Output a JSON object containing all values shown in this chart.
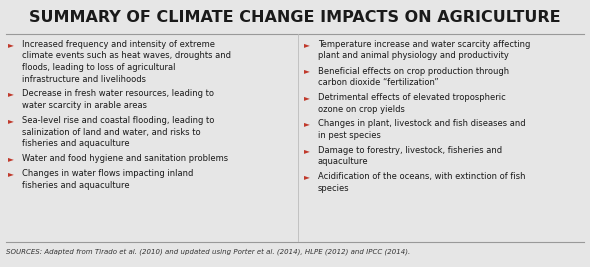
{
  "title": "SUMMARY OF CLIMATE CHANGE IMPACTS ON AGRICULTURE",
  "background_color": "#e6e6e6",
  "title_text_color": "#1a1a1a",
  "bullet_color": "#c0392b",
  "body_text_color": "#1a1a1a",
  "source_text_color": "#333333",
  "left_bullets": [
    "Increased frequency and intensity of extreme\nclimate events such as heat waves, droughts and\nfloods, leading to loss of agricultural\ninfrastructure and livelihoods",
    "Decrease in fresh water resources, leading to\nwater scarcity in arable areas",
    "Sea-level rise and coastal flooding, leading to\nsalinization of land and water, and risks to\nfisheries and aquaculture",
    "Water and food hygiene and sanitation problems",
    "Changes in water flows impacting inland\nfisheries and aquaculture"
  ],
  "right_bullets": [
    "Temperature increase and water scarcity affecting\nplant and animal physiology and productivity",
    "Beneficial effects on crop production through\ncarbon dioxide “fertilization”",
    "Detrimental effects of elevated tropospheric\nozone on crop yields",
    "Changes in plant, livestock and fish diseases and\nin pest species",
    "Damage to forestry, livestock, fisheries and\naquaculture",
    "Acidification of the oceans, with extinction of fish\nspecies"
  ],
  "source_text": "SOURCES: Adapted from Tirado et al. (2010) and updated using Porter et al. (2014), HLPE (2012) and IPCC (2014).",
  "fig_width": 5.9,
  "fig_height": 2.67,
  "dpi": 100
}
